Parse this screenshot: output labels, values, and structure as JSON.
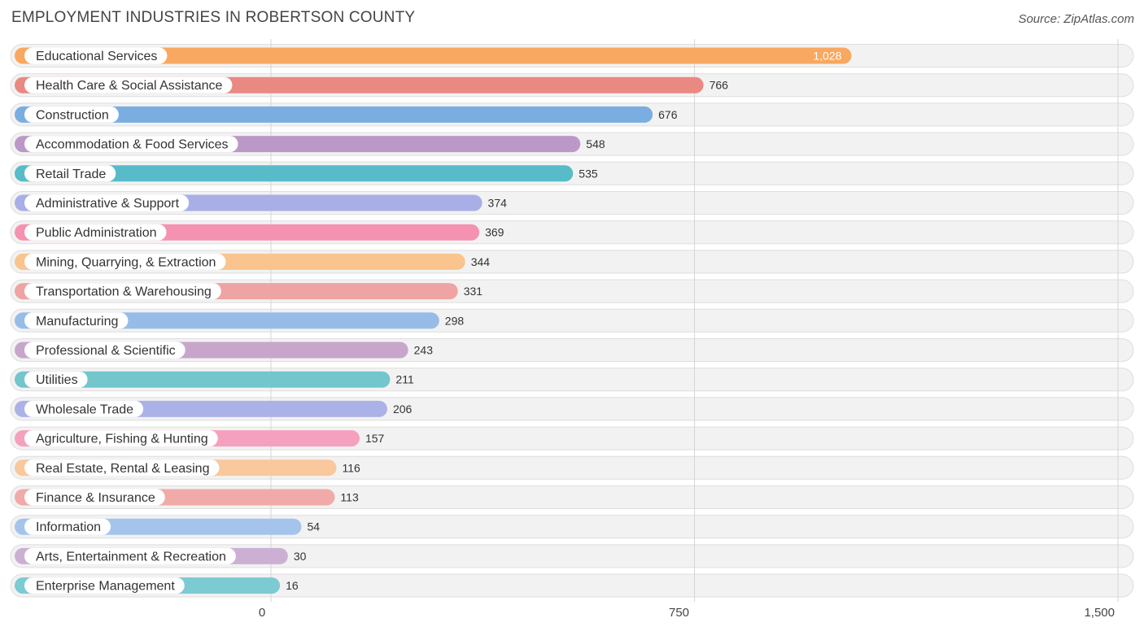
{
  "chart_data": {
    "type": "bar",
    "orientation": "horizontal",
    "title": "EMPLOYMENT INDUSTRIES IN ROBERTSON COUNTY",
    "source": "Source: ZipAtlas.com",
    "xlim": [
      0,
      1500
    ],
    "ticks": [
      0,
      750,
      1500
    ],
    "tick_labels": [
      "0",
      "750",
      "1,500"
    ],
    "categories": [
      "Educational Services",
      "Health Care & Social Assistance",
      "Construction",
      "Accommodation & Food Services",
      "Retail Trade",
      "Administrative & Support",
      "Public Administration",
      "Mining, Quarrying, & Extraction",
      "Transportation & Warehousing",
      "Manufacturing",
      "Professional & Scientific",
      "Utilities",
      "Wholesale Trade",
      "Agriculture, Fishing & Hunting",
      "Real Estate, Rental & Leasing",
      "Finance & Insurance",
      "Information",
      "Arts, Entertainment & Recreation",
      "Enterprise Management"
    ],
    "values": [
      1028,
      766,
      676,
      548,
      535,
      374,
      369,
      344,
      331,
      298,
      243,
      211,
      206,
      157,
      116,
      113,
      54,
      30,
      16
    ],
    "value_labels": [
      "1,028",
      "766",
      "676",
      "548",
      "535",
      "374",
      "369",
      "344",
      "331",
      "298",
      "243",
      "211",
      "206",
      "157",
      "116",
      "113",
      "54",
      "30",
      "16"
    ],
    "colors": [
      "#f8a860",
      "#ea8882",
      "#7aaee0",
      "#bb98c8",
      "#58bcc8",
      "#a8aee6",
      "#f592b2",
      "#f9c48e",
      "#eda4a2",
      "#98bce8",
      "#c8a6cc",
      "#72c6cc",
      "#abb2e8",
      "#f5a0be",
      "#f9c89c",
      "#f0aaa8",
      "#a4c4ec",
      "#ccb0d4",
      "#7ccad2"
    ]
  }
}
